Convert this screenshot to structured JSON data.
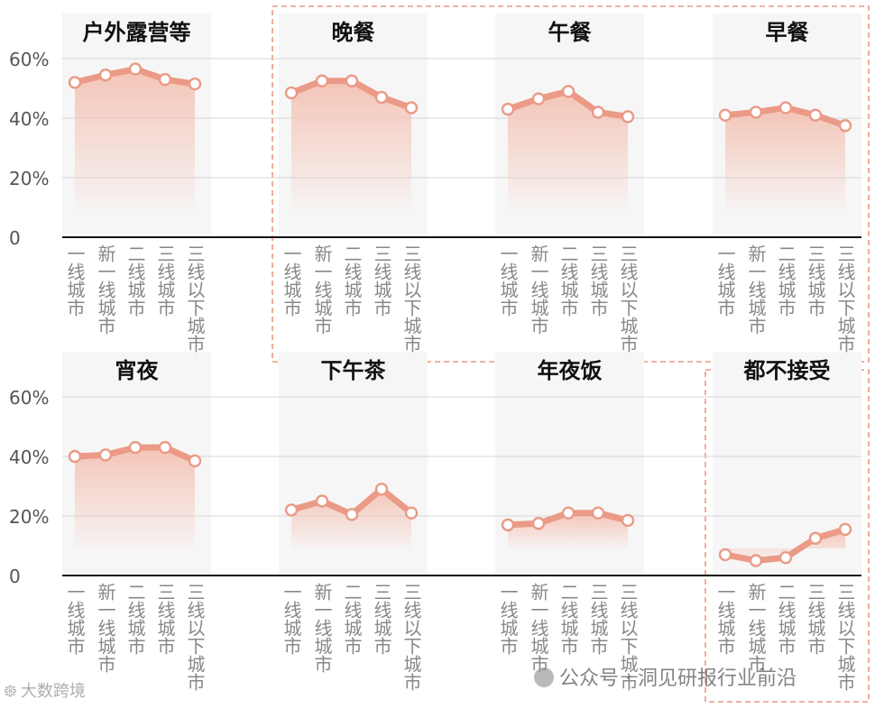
{
  "colors": {
    "line": "#ea9a86",
    "fill_top": "#f4c2b4",
    "panel_bg": "#f6f6f6",
    "grid": "#d7d7d7",
    "axis": "#111111",
    "dash_border": "#e89a80",
    "tick_text": "#555555",
    "xlabel_text": "#888888"
  },
  "y_ticks": [
    "60%",
    "40%",
    "20%",
    "0"
  ],
  "watermark": {
    "left": "大数跨境",
    "right": "公众号 · 洞见研报行业前沿"
  },
  "chart_data": [
    {
      "type": "line",
      "title": "户外露营等",
      "categories": [
        "一线城市",
        "新一线城市",
        "二线城市",
        "三线城市",
        "三线以下城市"
      ],
      "values": [
        52,
        54.5,
        56.5,
        53,
        51.5
      ],
      "ylim": [
        0,
        60
      ],
      "grid": true,
      "highlighted": false
    },
    {
      "type": "line",
      "title": "晚餐",
      "categories": [
        "一线城市",
        "新一线城市",
        "二线城市",
        "三线城市",
        "三线以下城市"
      ],
      "values": [
        48.5,
        52.5,
        52.5,
        47,
        43.5
      ],
      "ylim": [
        0,
        60
      ],
      "grid": true,
      "highlighted": true
    },
    {
      "type": "line",
      "title": "午餐",
      "categories": [
        "一线城市",
        "新一线城市",
        "二线城市",
        "三线城市",
        "三线以下城市"
      ],
      "values": [
        43,
        46.5,
        49,
        42,
        40.5
      ],
      "ylim": [
        0,
        60
      ],
      "grid": true,
      "highlighted": true
    },
    {
      "type": "line",
      "title": "早餐",
      "categories": [
        "一线城市",
        "新一线城市",
        "二线城市",
        "三线城市",
        "三线以下城市"
      ],
      "values": [
        41,
        42,
        43.5,
        41,
        37.5
      ],
      "ylim": [
        0,
        60
      ],
      "grid": true,
      "highlighted": true
    },
    {
      "type": "line",
      "title": "宵夜",
      "categories": [
        "一线城市",
        "新一线城市",
        "二线城市",
        "三线城市",
        "三线以下城市"
      ],
      "values": [
        40,
        40.5,
        43,
        43,
        38.5
      ],
      "ylim": [
        0,
        60
      ],
      "grid": true,
      "highlighted": false
    },
    {
      "type": "line",
      "title": "下午茶",
      "categories": [
        "一线城市",
        "新一线城市",
        "二线城市",
        "三线城市",
        "三线以下城市"
      ],
      "values": [
        22,
        25,
        20.5,
        29,
        21
      ],
      "ylim": [
        0,
        60
      ],
      "grid": true,
      "highlighted": false
    },
    {
      "type": "line",
      "title": "年夜饭",
      "categories": [
        "一线城市",
        "新一线城市",
        "二线城市",
        "三线城市",
        "三线以下城市"
      ],
      "values": [
        17,
        17.5,
        21,
        21,
        18.5
      ],
      "ylim": [
        0,
        60
      ],
      "grid": true,
      "highlighted": false
    },
    {
      "type": "line",
      "title": "都不接受",
      "categories": [
        "一线城市",
        "新一线城市",
        "二线城市",
        "三线城市",
        "三线以下城市"
      ],
      "values": [
        7,
        5,
        6,
        12.5,
        15.5
      ],
      "ylim": [
        0,
        60
      ],
      "grid": true,
      "highlighted": true
    }
  ]
}
